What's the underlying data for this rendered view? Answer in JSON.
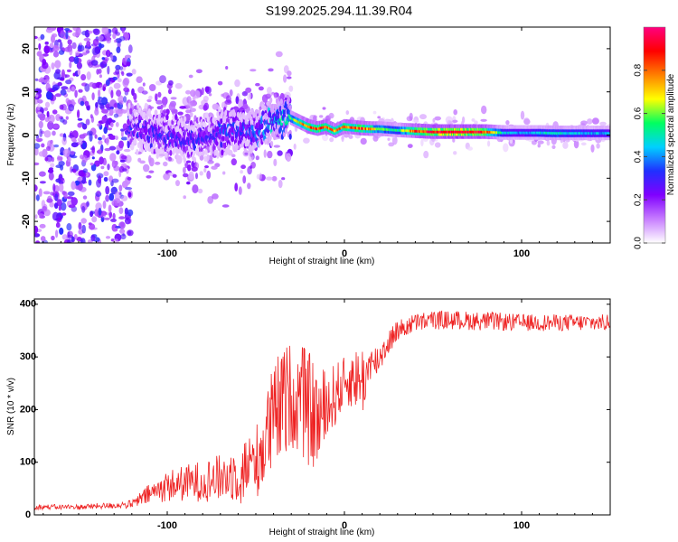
{
  "title": "S199.2025.294.11.39.R04",
  "chart_data": [
    {
      "type": "heatmap",
      "name": "spectrogram",
      "xlabel": "Height of straight line (km)",
      "ylabel": "Frequency (Hz)",
      "xlim": [
        -175,
        150
      ],
      "ylim": [
        -25,
        25
      ],
      "x_ticks": [
        -100,
        0,
        100
      ],
      "y_ticks": [
        -20,
        -10,
        0,
        10,
        20
      ],
      "colorbar": {
        "label": "Normalized spectral amplitude",
        "range": [
          0,
          1
        ],
        "ticks": [
          "0.0",
          "0.2",
          "0.4",
          "0.6",
          "0.8"
        ],
        "colors": [
          "#ffffff",
          "#c77dff",
          "#8000ff",
          "#2030ff",
          "#00d0ff",
          "#00ff60",
          "#ffff00",
          "#ff8000",
          "#ff0000",
          "#ff0080"
        ]
      },
      "signal_path": {
        "x": [
          -120,
          -110,
          -100,
          -90,
          -80,
          -70,
          -60,
          -50,
          -40,
          -35,
          -30,
          -25,
          -20,
          -15,
          -10,
          -5,
          0,
          5,
          10,
          15,
          20,
          30,
          40,
          50,
          60,
          70,
          80,
          90,
          100,
          110,
          120,
          130,
          140,
          150
        ],
        "freq": [
          2,
          1,
          0,
          -1,
          0,
          0.5,
          1,
          1,
          3,
          4,
          4,
          3,
          2,
          1.5,
          2,
          1,
          2,
          1.8,
          1.6,
          1.5,
          1.5,
          1.2,
          1,
          0.8,
          0.8,
          0.8,
          0.8,
          0.6,
          0.6,
          0.6,
          0.5,
          0.5,
          0.5,
          0.5
        ],
        "amplitude": [
          0.3,
          0.3,
          0.32,
          0.3,
          0.3,
          0.32,
          0.35,
          0.35,
          0.45,
          0.5,
          0.55,
          0.7,
          0.8,
          0.82,
          0.8,
          0.75,
          0.78,
          0.78,
          0.82,
          0.75,
          0.6,
          0.5,
          0.8,
          0.92,
          0.95,
          0.95,
          0.85,
          0.45,
          0.4,
          0.45,
          0.5,
          0.45,
          0.42,
          0.42
        ]
      }
    },
    {
      "type": "line",
      "name": "snr",
      "xlabel": "Height of straight line (km)",
      "ylabel": "SNR (10 * v/v)",
      "xlim": [
        -175,
        150
      ],
      "ylim": [
        0,
        410
      ],
      "x_ticks": [
        -100,
        0,
        100
      ],
      "y_ticks": [
        0,
        100,
        200,
        300,
        400
      ],
      "color": "#ee2222",
      "trend": {
        "x": [
          -175,
          -150,
          -130,
          -120,
          -110,
          -100,
          -90,
          -80,
          -70,
          -60,
          -50,
          -45,
          -40,
          -35,
          -30,
          -25,
          -20,
          -15,
          -10,
          -5,
          0,
          5,
          10,
          15,
          20,
          25,
          30,
          40,
          50,
          60,
          80,
          100,
          120,
          150
        ],
        "y": [
          15,
          15,
          18,
          20,
          40,
          55,
          60,
          65,
          70,
          80,
          100,
          140,
          180,
          210,
          230,
          220,
          200,
          180,
          200,
          230,
          250,
          260,
          255,
          280,
          300,
          330,
          350,
          365,
          370,
          370,
          368,
          365,
          365,
          365
        ],
        "noise": [
          5,
          5,
          6,
          8,
          20,
          30,
          35,
          40,
          45,
          55,
          70,
          90,
          110,
          110,
          100,
          110,
          110,
          100,
          80,
          60,
          50,
          55,
          70,
          40,
          30,
          25,
          20,
          18,
          18,
          18,
          18,
          16,
          16,
          16
        ]
      }
    }
  ]
}
